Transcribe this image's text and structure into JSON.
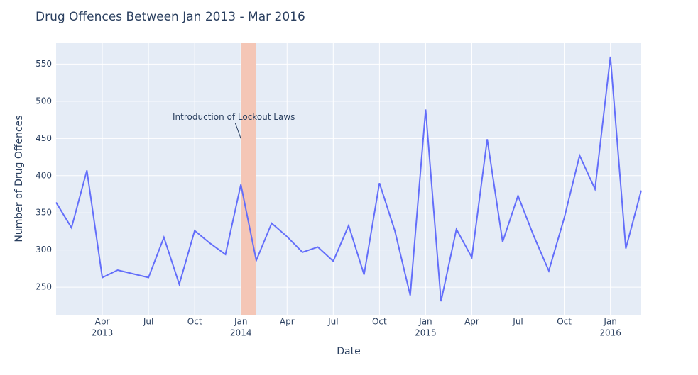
{
  "chart_data": {
    "type": "line",
    "title": "Drug Offences Between Jan 2013 - Mar 2016",
    "x_label": "Date",
    "y_label": "Number of Drug Offences",
    "x": [
      "2013-01",
      "2013-02",
      "2013-03",
      "2013-04",
      "2013-05",
      "2013-06",
      "2013-07",
      "2013-08",
      "2013-09",
      "2013-10",
      "2013-11",
      "2013-12",
      "2014-01",
      "2014-02",
      "2014-03",
      "2014-04",
      "2014-05",
      "2014-06",
      "2014-07",
      "2014-08",
      "2014-09",
      "2014-10",
      "2014-11",
      "2014-12",
      "2015-01",
      "2015-02",
      "2015-03",
      "2015-04",
      "2015-05",
      "2015-06",
      "2015-07",
      "2015-08",
      "2015-09",
      "2015-10",
      "2015-11",
      "2015-12",
      "2016-01",
      "2016-02",
      "2016-03"
    ],
    "series": [
      {
        "color": "#636efa",
        "values": [
          364,
          330,
          407,
          263,
          273,
          268,
          263,
          317,
          254,
          326,
          309,
          294,
          388,
          286,
          336,
          318,
          297,
          304,
          285,
          333,
          267,
          390,
          326,
          239,
          489,
          231,
          328,
          290,
          449,
          311,
          373,
          320,
          272,
          343,
          427,
          382,
          560,
          302,
          380
        ]
      }
    ],
    "xlim": [
      "2013-01",
      "2016-03"
    ],
    "xticks": [
      {
        "value": "2013-04",
        "label": "Apr"
      },
      {
        "value": "2013-07",
        "label": "Jul"
      },
      {
        "value": "2013-10",
        "label": "Oct"
      },
      {
        "value": "2014-01",
        "label": "Jan"
      },
      {
        "value": "2014-04",
        "label": "Apr"
      },
      {
        "value": "2014-07",
        "label": "Jul"
      },
      {
        "value": "2014-10",
        "label": "Oct"
      },
      {
        "value": "2015-01",
        "label": "Jan"
      },
      {
        "value": "2015-04",
        "label": "Apr"
      },
      {
        "value": "2015-07",
        "label": "Jul"
      },
      {
        "value": "2015-10",
        "label": "Oct"
      },
      {
        "value": "2016-01",
        "label": "Jan"
      }
    ],
    "xtick_years": [
      {
        "value": "2013-04",
        "label": "2013"
      },
      {
        "value": "2014-01",
        "label": "2014"
      },
      {
        "value": "2015-01",
        "label": "2015"
      },
      {
        "value": "2016-01",
        "label": "2016"
      }
    ],
    "ylim": [
      212,
      579
    ],
    "yticks": [
      250,
      300,
      350,
      400,
      450,
      500,
      550
    ],
    "grid": true,
    "shaded_span": {
      "start": "2014-01",
      "end": "2014-02",
      "color": "#f4c6b6"
    },
    "annotation": {
      "text": "Introduction of Lockout Laws",
      "x": "2014-01",
      "y": 450
    }
  }
}
